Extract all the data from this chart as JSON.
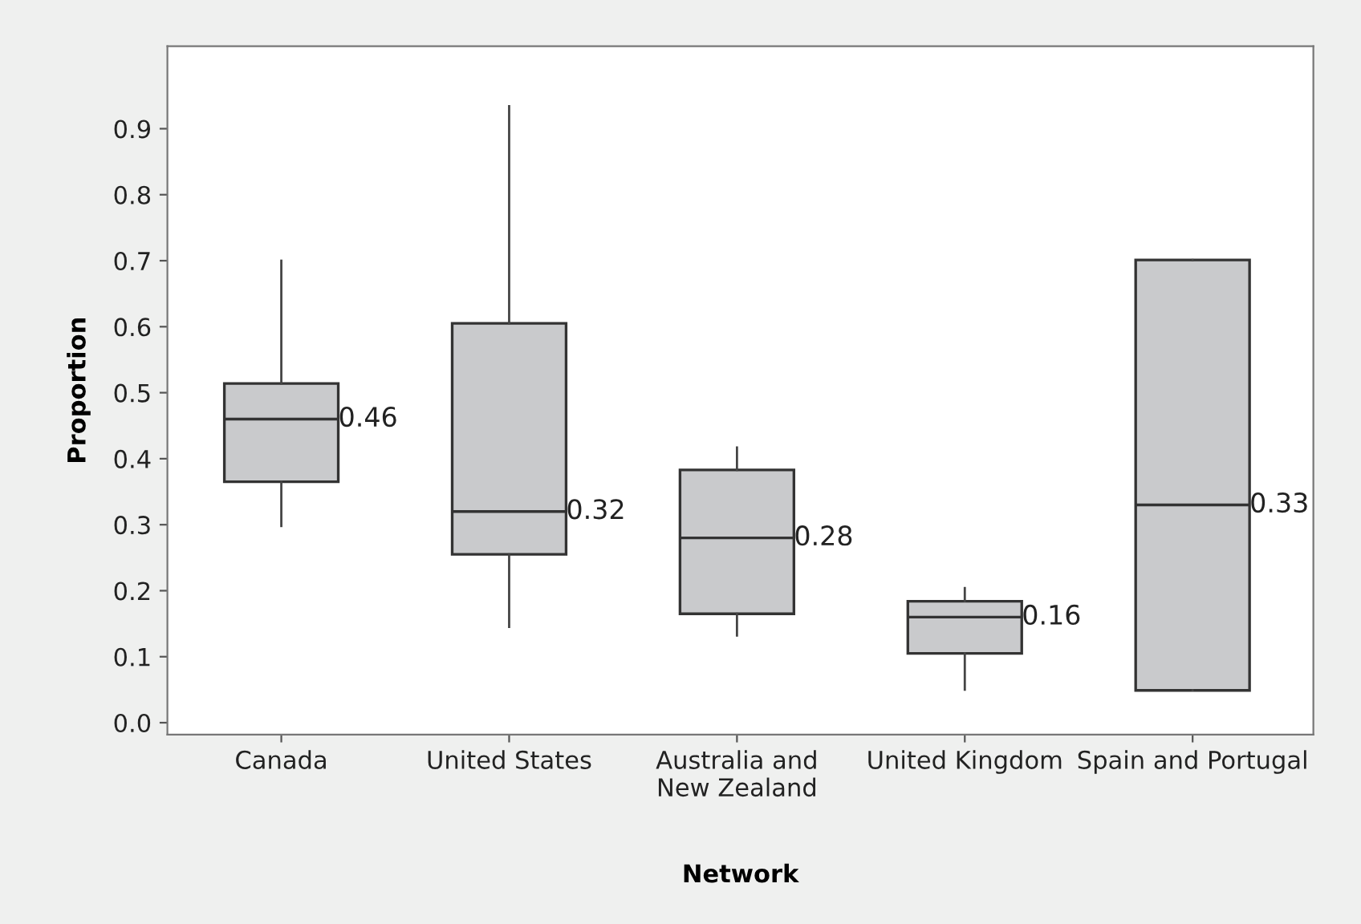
{
  "chart_data": {
    "type": "box",
    "xlabel": "Network",
    "ylabel": "Proportion",
    "categories": [
      "Canada",
      "United States",
      "Australia and\nNew Zealand",
      "United Kingdom",
      "Spain and Portugal"
    ],
    "boxes": [
      {
        "low": 0.298,
        "q1": 0.365,
        "median": 0.46,
        "q3": 0.514,
        "high": 0.7
      },
      {
        "low": 0.145,
        "q1": 0.255,
        "median": 0.32,
        "q3": 0.605,
        "high": 0.934
      },
      {
        "low": 0.132,
        "q1": 0.165,
        "median": 0.28,
        "q3": 0.383,
        "high": 0.417
      },
      {
        "low": 0.05,
        "q1": 0.105,
        "median": 0.16,
        "q3": 0.184,
        "high": 0.204
      },
      {
        "low": 0.049,
        "q1": 0.049,
        "median": 0.33,
        "q3": 0.701,
        "high": 0.701
      }
    ],
    "annotations": [
      {
        "text": "0.46",
        "x": "Canada",
        "y": 0.46
      },
      {
        "text": "0.32",
        "x": "United States",
        "y": 0.32
      },
      {
        "text": "0.28",
        "x": "Australia and\nNew Zealand",
        "y": 0.28
      },
      {
        "text": "0.16",
        "x": "United Kingdom",
        "y": 0.16
      },
      {
        "text": "0.33",
        "x": "Spain and Portugal",
        "y": 0.33
      }
    ],
    "color": "#c9cacc",
    "grid": false,
    "legend": false,
    "ylim": [
      -0.018,
      1.025
    ],
    "yticks": [
      {
        "value": 0,
        "label": "0.0"
      },
      0.1,
      0.2,
      0.3,
      0.4,
      0.5,
      0.6,
      0.7,
      0.8,
      0.9
    ]
  }
}
